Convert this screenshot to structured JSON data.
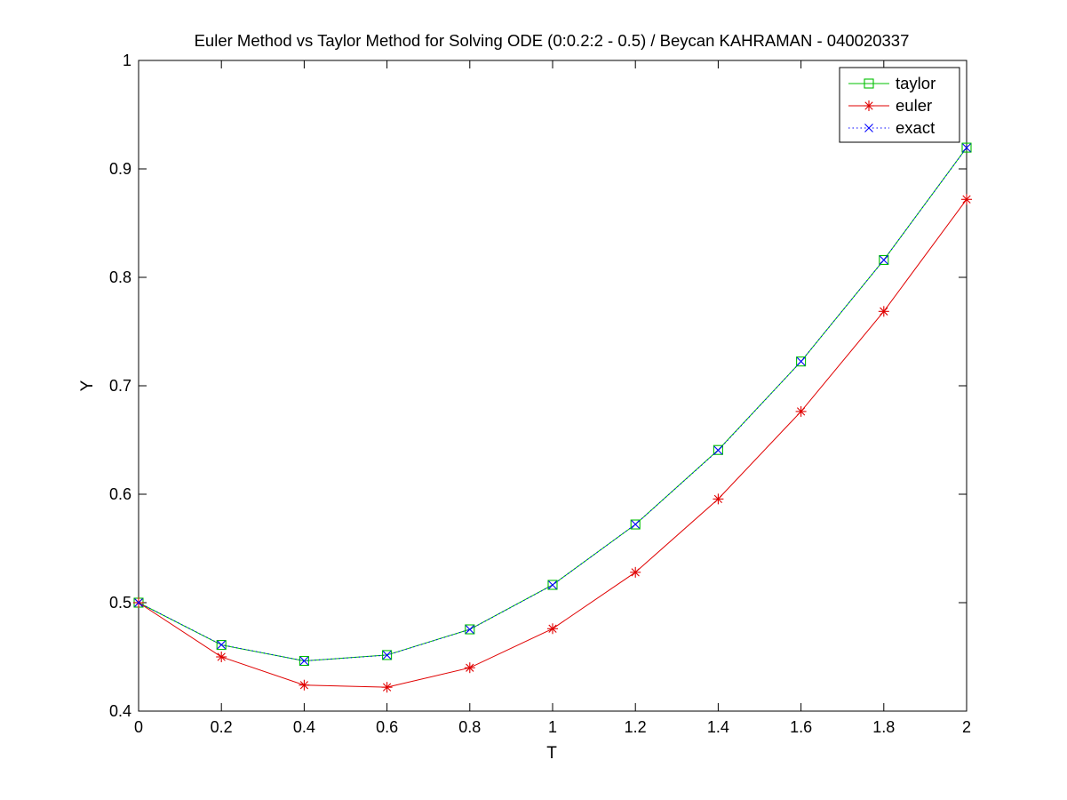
{
  "chart_data": {
    "type": "line",
    "title": "Euler Method vs Taylor Method for Solving ODE (0:0.2:2 - 0.5) / Beycan KAHRAMAN - 040020337",
    "xlabel": "T",
    "ylabel": "Y",
    "xlim": [
      0,
      2
    ],
    "ylim": [
      0.4,
      1
    ],
    "x_ticks": [
      "0",
      "0.2",
      "0.4",
      "0.6",
      "0.8",
      "1",
      "1.2",
      "1.4",
      "1.6",
      "1.8",
      "2"
    ],
    "y_ticks": [
      "0.4",
      "0.5",
      "0.6",
      "0.7",
      "0.8",
      "0.9",
      "1"
    ],
    "grid": false,
    "legend_position": "top-right",
    "x": [
      0,
      0.2,
      0.4,
      0.6,
      0.8,
      1.0,
      1.2,
      1.4,
      1.6,
      1.8,
      2.0
    ],
    "series": [
      {
        "name": "taylor",
        "color": "#00c000",
        "marker": "square",
        "line": "solid",
        "values": [
          0.5,
          0.461,
          0.4463,
          0.4517,
          0.4754,
          0.5164,
          0.5721,
          0.6408,
          0.7224,
          0.816,
          0.9196
        ]
      },
      {
        "name": "euler",
        "color": "#e00000",
        "marker": "asterisk",
        "line": "solid",
        "values": [
          0.5,
          0.45,
          0.424,
          0.422,
          0.44,
          0.476,
          0.528,
          0.5956,
          0.6763,
          0.7686,
          0.8719
        ]
      },
      {
        "name": "exact",
        "color": "#0000ff",
        "marker": "x",
        "line": "dotted",
        "values": [
          0.5,
          0.4612,
          0.4463,
          0.4516,
          0.4753,
          0.5163,
          0.5722,
          0.6405,
          0.7224,
          0.816,
          0.9195
        ]
      }
    ]
  }
}
